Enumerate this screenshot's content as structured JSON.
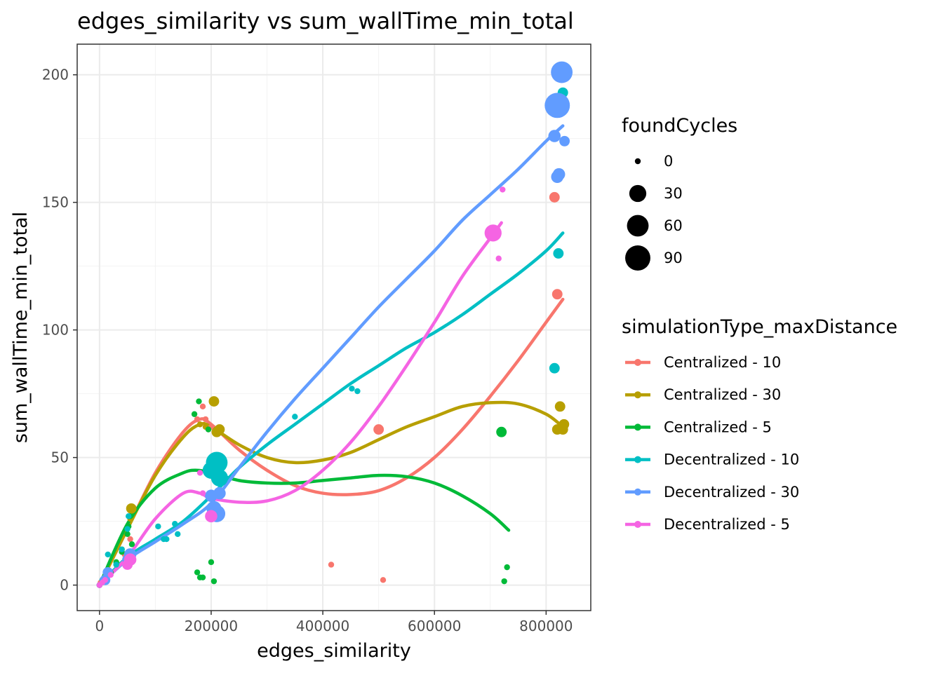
{
  "chart_data": {
    "type": "scatter",
    "title": "edges_similarity  vs  sum_wallTime_min_total",
    "xlabel": "edges_similarity",
    "ylabel": "sum_wallTime_min_total",
    "xlim": [
      -40000,
      880000
    ],
    "ylim": [
      -10,
      212
    ],
    "xticks": [
      0,
      200000,
      400000,
      600000,
      800000
    ],
    "xtick_labels": [
      "0",
      "200000",
      "400000",
      "600000",
      "800000"
    ],
    "yticks": [
      0,
      50,
      100,
      150,
      200
    ],
    "ytick_labels": [
      "0",
      "50",
      "100",
      "150",
      "200"
    ],
    "grid": true,
    "size_legend": {
      "title": "foundCycles",
      "entries": [
        {
          "label": "0",
          "value": 0
        },
        {
          "label": "30",
          "value": 30
        },
        {
          "label": "60",
          "value": 60
        },
        {
          "label": "90",
          "value": 90
        }
      ]
    },
    "color_legend": {
      "title": "simulationType_maxDistance",
      "placement": "right"
    },
    "series": [
      {
        "name": "Centralized - 10",
        "color": "#F8766D",
        "points": [
          [
            0,
            0,
            0
          ],
          [
            2000,
            1,
            0
          ],
          [
            5000,
            2,
            0
          ],
          [
            10000,
            3,
            0
          ],
          [
            15000,
            4,
            0
          ],
          [
            30000,
            8,
            0
          ],
          [
            45000,
            12,
            0
          ],
          [
            55000,
            18,
            0
          ],
          [
            175000,
            65,
            0
          ],
          [
            180000,
            63,
            0
          ],
          [
            185000,
            70,
            0
          ],
          [
            190000,
            65,
            0
          ],
          [
            195000,
            61,
            0
          ],
          [
            200000,
            62,
            0
          ],
          [
            210000,
            60,
            0
          ],
          [
            415000,
            8,
            0
          ],
          [
            500000,
            61,
            5
          ],
          [
            508000,
            2,
            0
          ],
          [
            815000,
            152,
            5
          ],
          [
            820000,
            114,
            5
          ]
        ],
        "smooth": [
          [
            0,
            0
          ],
          [
            50000,
            22
          ],
          [
            100000,
            44
          ],
          [
            150000,
            60
          ],
          [
            180000,
            65
          ],
          [
            200000,
            63
          ],
          [
            250000,
            53
          ],
          [
            300000,
            45
          ],
          [
            350000,
            39
          ],
          [
            400000,
            36
          ],
          [
            450000,
            35.5
          ],
          [
            500000,
            37
          ],
          [
            550000,
            42
          ],
          [
            600000,
            50
          ],
          [
            650000,
            61
          ],
          [
            700000,
            74
          ],
          [
            750000,
            88
          ],
          [
            800000,
            103
          ],
          [
            830000,
            112
          ]
        ]
      },
      {
        "name": "Centralized - 30",
        "color": "#B79F00",
        "points": [
          [
            0,
            0,
            0
          ],
          [
            5000,
            1,
            0
          ],
          [
            10000,
            3,
            0
          ],
          [
            20000,
            5,
            0
          ],
          [
            40000,
            14,
            0
          ],
          [
            55000,
            26,
            0
          ],
          [
            57000,
            30,
            5
          ],
          [
            180000,
            63,
            0
          ],
          [
            190000,
            62,
            0
          ],
          [
            205000,
            72,
            5
          ],
          [
            210000,
            60,
            5
          ],
          [
            215000,
            61,
            5
          ],
          [
            820000,
            61,
            5
          ],
          [
            825000,
            70,
            5
          ],
          [
            830000,
            61,
            5
          ],
          [
            832000,
            63,
            5
          ]
        ],
        "smooth": [
          [
            0,
            0
          ],
          [
            50000,
            22
          ],
          [
            100000,
            43
          ],
          [
            150000,
            58
          ],
          [
            180000,
            63
          ],
          [
            200000,
            62
          ],
          [
            250000,
            55
          ],
          [
            300000,
            50
          ],
          [
            350000,
            48
          ],
          [
            400000,
            49
          ],
          [
            450000,
            52
          ],
          [
            500000,
            57
          ],
          [
            550000,
            62
          ],
          [
            600000,
            66
          ],
          [
            650000,
            70
          ],
          [
            700000,
            71.5
          ],
          [
            750000,
            71
          ],
          [
            800000,
            67
          ],
          [
            830000,
            62
          ]
        ]
      },
      {
        "name": "Centralized - 5",
        "color": "#00BA38",
        "points": [
          [
            0,
            0,
            0
          ],
          [
            5000,
            1,
            0
          ],
          [
            10000,
            2,
            0
          ],
          [
            20000,
            5,
            0
          ],
          [
            30000,
            9,
            0
          ],
          [
            40000,
            13,
            0
          ],
          [
            50000,
            20,
            0
          ],
          [
            52000,
            23,
            0
          ],
          [
            55000,
            27,
            0
          ],
          [
            58000,
            16,
            0
          ],
          [
            170000,
            67,
            0
          ],
          [
            175000,
            5,
            0
          ],
          [
            178000,
            72,
            0
          ],
          [
            180000,
            3,
            0
          ],
          [
            185000,
            3,
            0
          ],
          [
            195000,
            61,
            0
          ],
          [
            200000,
            9,
            0
          ],
          [
            205000,
            1.5,
            0
          ],
          [
            720000,
            60,
            5
          ],
          [
            725000,
            1.5,
            0
          ],
          [
            730000,
            7,
            0
          ]
        ],
        "smooth": [
          [
            0,
            0
          ],
          [
            50000,
            24
          ],
          [
            100000,
            38
          ],
          [
            150000,
            44
          ],
          [
            175000,
            45
          ],
          [
            200000,
            44
          ],
          [
            250000,
            41
          ],
          [
            300000,
            40
          ],
          [
            350000,
            40
          ],
          [
            400000,
            41
          ],
          [
            450000,
            42
          ],
          [
            500000,
            43
          ],
          [
            550000,
            42.5
          ],
          [
            600000,
            40
          ],
          [
            650000,
            35
          ],
          [
            700000,
            28
          ],
          [
            733000,
            21.5
          ]
        ]
      },
      {
        "name": "Decentralized - 10",
        "color": "#00BFC4",
        "points": [
          [
            0,
            0,
            0
          ],
          [
            5000,
            2,
            0
          ],
          [
            15000,
            12,
            0
          ],
          [
            30000,
            8,
            0
          ],
          [
            40000,
            14,
            0
          ],
          [
            50000,
            22,
            0
          ],
          [
            52000,
            27,
            0
          ],
          [
            105000,
            23,
            0
          ],
          [
            115000,
            18,
            0
          ],
          [
            120000,
            18,
            0
          ],
          [
            135000,
            24,
            0
          ],
          [
            140000,
            20,
            0
          ],
          [
            200000,
            45,
            30
          ],
          [
            210000,
            48,
            60
          ],
          [
            215000,
            42,
            30
          ],
          [
            350000,
            66,
            0
          ],
          [
            452000,
            77,
            0
          ],
          [
            462000,
            76,
            0
          ],
          [
            815000,
            85,
            5
          ],
          [
            822000,
            130,
            5
          ],
          [
            830000,
            193,
            5
          ]
        ],
        "smooth": [
          [
            0,
            0
          ],
          [
            50000,
            11
          ],
          [
            100000,
            18
          ],
          [
            150000,
            25
          ],
          [
            200000,
            35
          ],
          [
            250000,
            46
          ],
          [
            300000,
            55
          ],
          [
            350000,
            63
          ],
          [
            400000,
            71
          ],
          [
            450000,
            79
          ],
          [
            500000,
            86
          ],
          [
            550000,
            93
          ],
          [
            600000,
            99
          ],
          [
            650000,
            106
          ],
          [
            700000,
            114
          ],
          [
            750000,
            122
          ],
          [
            800000,
            131
          ],
          [
            830000,
            138
          ]
        ]
      },
      {
        "name": "Decentralized - 30",
        "color": "#619CFF",
        "points": [
          [
            0,
            0,
            0
          ],
          [
            10000,
            2,
            5
          ],
          [
            15000,
            5,
            5
          ],
          [
            50000,
            10,
            5
          ],
          [
            55000,
            12,
            10
          ],
          [
            205000,
            30,
            20
          ],
          [
            210000,
            28,
            30
          ],
          [
            215000,
            36,
            10
          ],
          [
            200000,
            35,
            10
          ],
          [
            815000,
            176,
            10
          ],
          [
            820000,
            160,
            10
          ],
          [
            823000,
            161,
            10
          ],
          [
            820000,
            188,
            90
          ],
          [
            828000,
            201,
            60
          ],
          [
            833000,
            174,
            5
          ]
        ],
        "smooth": [
          [
            0,
            0
          ],
          [
            50000,
            10
          ],
          [
            100000,
            17
          ],
          [
            150000,
            24
          ],
          [
            200000,
            32
          ],
          [
            250000,
            46
          ],
          [
            300000,
            60
          ],
          [
            350000,
            73
          ],
          [
            400000,
            85
          ],
          [
            450000,
            97
          ],
          [
            500000,
            109
          ],
          [
            550000,
            120
          ],
          [
            600000,
            131
          ],
          [
            650000,
            143
          ],
          [
            700000,
            153
          ],
          [
            750000,
            163
          ],
          [
            800000,
            174
          ],
          [
            830000,
            180
          ]
        ]
      },
      {
        "name": "Decentralized - 5",
        "color": "#F564E3",
        "points": [
          [
            0,
            0,
            0
          ],
          [
            5000,
            1,
            0
          ],
          [
            10000,
            2,
            0
          ],
          [
            20000,
            4,
            0
          ],
          [
            50000,
            8,
            5
          ],
          [
            55000,
            10,
            10
          ],
          [
            180000,
            44,
            0
          ],
          [
            185000,
            36,
            0
          ],
          [
            200000,
            27,
            10
          ],
          [
            705000,
            138,
            30
          ],
          [
            715000,
            128,
            0
          ],
          [
            722000,
            155,
            0
          ]
        ],
        "smooth": [
          [
            0,
            0
          ],
          [
            50000,
            11
          ],
          [
            100000,
            26
          ],
          [
            150000,
            36
          ],
          [
            180000,
            36
          ],
          [
            200000,
            34
          ],
          [
            250000,
            32.5
          ],
          [
            300000,
            33
          ],
          [
            350000,
            37
          ],
          [
            400000,
            45
          ],
          [
            450000,
            56
          ],
          [
            500000,
            70
          ],
          [
            550000,
            86
          ],
          [
            600000,
            103
          ],
          [
            650000,
            121
          ],
          [
            700000,
            136
          ],
          [
            720000,
            142
          ]
        ]
      }
    ]
  }
}
